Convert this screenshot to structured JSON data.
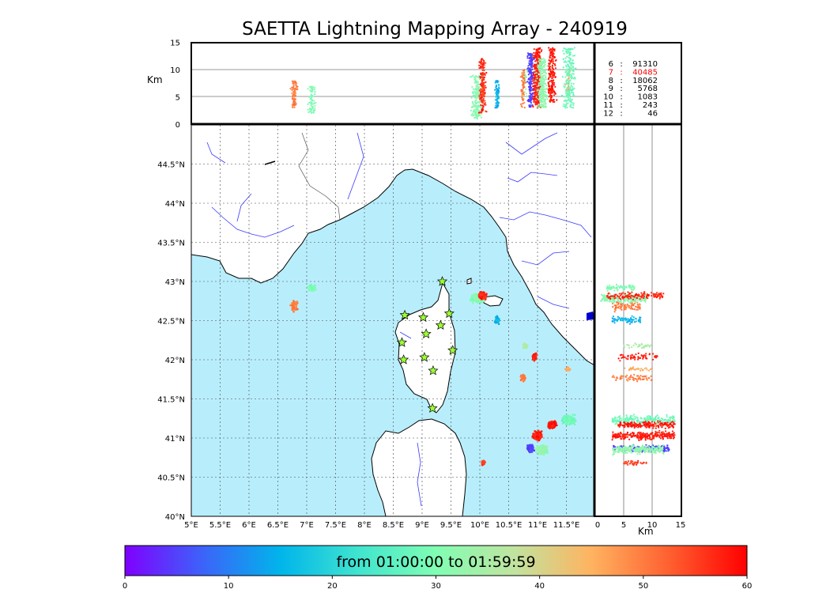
{
  "title": "SAETTA Lightning Mapping Array - 240919",
  "colors": {
    "sea": "#b8eefc",
    "rivers": "#3a3aff",
    "border": "#555555",
    "station_fill": "#9cff33",
    "highlight_count": "#ff0000"
  },
  "height_panel": {
    "unit_label": "Km",
    "y_ticks": [
      "15",
      "10",
      "5",
      "0"
    ]
  },
  "side_panel": {
    "unit_label": "Km",
    "x_ticks": [
      "0",
      "5",
      "10",
      "15"
    ]
  },
  "map": {
    "lat_ticks": [
      "44.5°N",
      "44°N",
      "43.5°N",
      "43°N",
      "42.5°N",
      "42°N",
      "41.5°N",
      "41°N",
      "40.5°N",
      "40°N"
    ],
    "lon_ticks": [
      "5°E",
      "5.5°E",
      "6°E",
      "6.5°E",
      "7°E",
      "7.5°E",
      "8°E",
      "8.5°E",
      "9°E",
      "9.5°E",
      "10°E",
      "10.5°E",
      "11°E",
      "11.5°E"
    ]
  },
  "counts": [
    {
      "hour": "6",
      "value": "91310",
      "highlight": false
    },
    {
      "hour": "7",
      "value": "40485",
      "highlight": true
    },
    {
      "hour": "8",
      "value": "18062",
      "highlight": false
    },
    {
      "hour": "9",
      "value": "5768",
      "highlight": false
    },
    {
      "hour": "10",
      "value": "1083",
      "highlight": false
    },
    {
      "hour": "11",
      "value": "243",
      "highlight": false
    },
    {
      "hour": "12",
      "value": "46",
      "highlight": false
    }
  ],
  "colorbar": {
    "label": "from 01:00:00 to 01:59:59",
    "ticks": [
      "0",
      "10",
      "20",
      "30",
      "40",
      "50",
      "60"
    ],
    "gradient": [
      "#7f00ff",
      "#3c63f9",
      "#00b5eb",
      "#40e4cf",
      "#80feb3",
      "#c0e4a0",
      "#ffb360",
      "#ff6030",
      "#ff0000"
    ]
  },
  "chart_data": {
    "type": "scatter",
    "title": "SAETTA Lightning Mapping Array - 240919",
    "xlabel": "",
    "ylabel": "",
    "xlim": [
      5,
      12
    ],
    "ylim": [
      40,
      45
    ],
    "color_scale": {
      "label": "from 01:00:00 to 01:59:59",
      "range": [
        0,
        60
      ]
    },
    "stations": [
      {
        "lon": 9.35,
        "lat": 43.0
      },
      {
        "lon": 8.7,
        "lat": 42.57
      },
      {
        "lon": 9.02,
        "lat": 42.54
      },
      {
        "lon": 9.47,
        "lat": 42.59
      },
      {
        "lon": 9.32,
        "lat": 42.44
      },
      {
        "lon": 9.07,
        "lat": 42.33
      },
      {
        "lon": 8.65,
        "lat": 42.22
      },
      {
        "lon": 9.53,
        "lat": 42.12
      },
      {
        "lon": 9.04,
        "lat": 42.03
      },
      {
        "lon": 8.68,
        "lat": 42.0
      },
      {
        "lon": 9.19,
        "lat": 41.86
      },
      {
        "lon": 9.18,
        "lat": 41.38
      }
    ],
    "clusters": [
      {
        "lon": 6.78,
        "lat": 42.69,
        "lat_spread": 0.08,
        "lon_spread": 0.08,
        "alt_min": 3,
        "alt_max": 8,
        "time": 50,
        "n": 90
      },
      {
        "lon": 7.09,
        "lat": 42.92,
        "lat_spread": 0.05,
        "lon_spread": 0.08,
        "alt_min": 2,
        "alt_max": 7,
        "time": 30,
        "n": 80
      },
      {
        "lon": 9.95,
        "lat": 42.78,
        "lat_spread": 0.08,
        "lon_spread": 0.15,
        "alt_min": 1,
        "alt_max": 9,
        "time": 31,
        "n": 200
      },
      {
        "lon": 10.05,
        "lat": 42.82,
        "lat_spread": 0.06,
        "lon_spread": 0.08,
        "alt_min": 2,
        "alt_max": 12,
        "time": 57,
        "n": 150
      },
      {
        "lon": 10.3,
        "lat": 42.51,
        "lat_spread": 0.06,
        "lon_spread": 0.05,
        "alt_min": 3,
        "alt_max": 8,
        "time": 15,
        "n": 70
      },
      {
        "lon": 10.79,
        "lat": 42.18,
        "lat_spread": 0.04,
        "lon_spread": 0.05,
        "alt_min": 5,
        "alt_max": 10,
        "time": 35,
        "n": 30
      },
      {
        "lon": 10.95,
        "lat": 42.04,
        "lat_spread": 0.06,
        "lon_spread": 0.05,
        "alt_min": 4,
        "alt_max": 11,
        "time": 58,
        "n": 60
      },
      {
        "lon": 10.75,
        "lat": 41.77,
        "lat_spread": 0.06,
        "lon_spread": 0.05,
        "alt_min": 3,
        "alt_max": 10,
        "time": 50,
        "n": 60
      },
      {
        "lon": 11.53,
        "lat": 41.88,
        "lat_spread": 0.03,
        "lon_spread": 0.05,
        "alt_min": 5,
        "alt_max": 10,
        "time": 45,
        "n": 25
      },
      {
        "lon": 11.55,
        "lat": 41.23,
        "lat_spread": 0.08,
        "lon_spread": 0.15,
        "alt_min": 3,
        "alt_max": 14,
        "time": 28,
        "n": 220
      },
      {
        "lon": 11.25,
        "lat": 41.17,
        "lat_spread": 0.06,
        "lon_spread": 0.1,
        "alt_min": 4,
        "alt_max": 14,
        "time": 58,
        "n": 200
      },
      {
        "lon": 11.0,
        "lat": 41.03,
        "lat_spread": 0.07,
        "lon_spread": 0.1,
        "alt_min": 3,
        "alt_max": 14,
        "time": 58,
        "n": 260
      },
      {
        "lon": 10.88,
        "lat": 40.87,
        "lat_spread": 0.07,
        "lon_spread": 0.07,
        "alt_min": 3,
        "alt_max": 13,
        "time": 5,
        "n": 180
      },
      {
        "lon": 11.08,
        "lat": 40.85,
        "lat_spread": 0.07,
        "lon_spread": 0.12,
        "alt_min": 3,
        "alt_max": 12,
        "time": 32,
        "n": 260
      },
      {
        "lon": 10.06,
        "lat": 40.68,
        "lat_spread": 0.04,
        "lon_spread": 0.04,
        "alt_min": 5,
        "alt_max": 9,
        "time": 55,
        "n": 40
      }
    ]
  }
}
